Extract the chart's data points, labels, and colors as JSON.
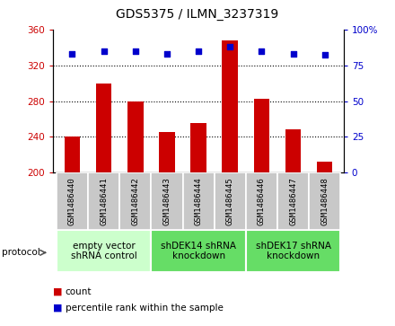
{
  "title": "GDS5375 / ILMN_3237319",
  "samples": [
    "GSM1486440",
    "GSM1486441",
    "GSM1486442",
    "GSM1486443",
    "GSM1486444",
    "GSM1486445",
    "GSM1486446",
    "GSM1486447",
    "GSM1486448"
  ],
  "counts": [
    240,
    300,
    280,
    245,
    255,
    348,
    283,
    248,
    212
  ],
  "percentiles": [
    83,
    85,
    85,
    83,
    85,
    88,
    85,
    83,
    82
  ],
  "ylim_left": [
    200,
    360
  ],
  "ylim_right": [
    0,
    100
  ],
  "yticks_left": [
    200,
    240,
    280,
    320,
    360
  ],
  "yticks_right": [
    0,
    25,
    50,
    75,
    100
  ],
  "bar_color": "#cc0000",
  "dot_color": "#0000cc",
  "groups": [
    {
      "label": "empty vector\nshRNA control",
      "start": 0,
      "end": 3,
      "color": "#ccffcc"
    },
    {
      "label": "shDEK14 shRNA\nknockdown",
      "start": 3,
      "end": 6,
      "color": "#66dd66"
    },
    {
      "label": "shDEK17 shRNA\nknockdown",
      "start": 6,
      "end": 9,
      "color": "#66dd66"
    }
  ],
  "legend_count_label": "count",
  "legend_pct_label": "percentile rank within the sample",
  "protocol_label": "protocol",
  "bar_width": 0.5,
  "sample_fontsize": 6.5,
  "title_fontsize": 10,
  "axis_tick_fontsize": 7.5,
  "group_fontsize": 7.5,
  "bar_color_left": "#cc0000",
  "axis_color_right": "#0000cc",
  "sample_box_color": "#c8c8c8",
  "figure_bg": "#ffffff"
}
